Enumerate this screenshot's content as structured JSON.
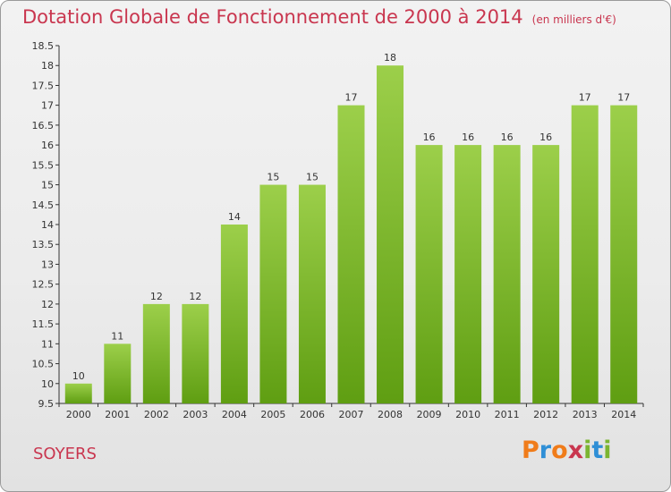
{
  "chart_data": {
    "type": "bar",
    "title": "Dotation Globale de Fonctionnement de 2000 à 2014",
    "subtitle": "(en milliers d'€)",
    "xlabel": "",
    "ylabel": "",
    "categories": [
      "2000",
      "2001",
      "2002",
      "2003",
      "2004",
      "2005",
      "2006",
      "2007",
      "2008",
      "2009",
      "2010",
      "2011",
      "2012",
      "2013",
      "2014"
    ],
    "values": [
      10,
      11,
      12,
      12,
      14,
      15,
      15,
      17,
      18,
      16,
      16,
      16,
      16,
      17,
      17
    ],
    "data_labels": [
      "10",
      "11",
      "12",
      "12",
      "14",
      "15",
      "15",
      "17",
      "18",
      "16",
      "16",
      "16",
      "16",
      "17",
      "17"
    ],
    "ylim": [
      9.5,
      18.5
    ],
    "yticks": [
      9.5,
      10,
      10.5,
      11,
      11.5,
      12,
      12.5,
      13,
      13.5,
      14,
      14.5,
      15,
      15.5,
      16,
      16.5,
      17,
      17.5,
      18,
      18.5
    ],
    "ytick_labels": [
      "9.5",
      "10",
      "10.5",
      "11",
      "11.5",
      "12",
      "12.5",
      "13",
      "13.5",
      "14",
      "14.5",
      "15",
      "15.5",
      "16",
      "16.5",
      "17",
      "17.5",
      "18",
      "18.5"
    ],
    "grid": false,
    "bar_color_top": "#9ccf4a",
    "bar_color_bottom": "#5f9e12"
  },
  "commune": "SOYERS",
  "brand": {
    "letters": [
      "P",
      "r",
      "o",
      "x",
      "i",
      "t",
      "i"
    ],
    "colors": [
      "#f07c1a",
      "#2f8fd6",
      "#f07c1a",
      "#c9364f",
      "#7bb531",
      "#2f8fd6",
      "#7bb531"
    ]
  },
  "colors": {
    "title": "#c9364f",
    "axis": "#333333"
  }
}
